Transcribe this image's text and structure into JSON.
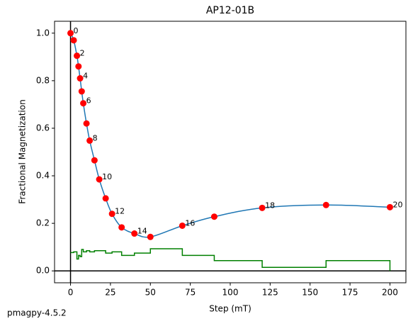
{
  "chart_data": {
    "type": "line",
    "title": "AP12-01B",
    "xlabel": "Step (mT)",
    "ylabel": "Fractional Magnetization",
    "footer": "pmagpy-4.5.2",
    "x": [
      0,
      2,
      4,
      5,
      6,
      7,
      8,
      10,
      12,
      15,
      18,
      22,
      26,
      32,
      40,
      50,
      70,
      90,
      120,
      160,
      200
    ],
    "series": [
      {
        "color": "#1f77b4",
        "marker_color": "#ff0000",
        "values": [
          1.0,
          0.97,
          0.905,
          0.86,
          0.81,
          0.755,
          0.705,
          0.62,
          0.548,
          0.465,
          0.385,
          0.305,
          0.24,
          0.183,
          0.157,
          0.143,
          0.19,
          0.228,
          0.265,
          0.277,
          0.268
        ],
        "point_labels": [
          0,
          null,
          2,
          null,
          4,
          null,
          6,
          null,
          8,
          null,
          10,
          null,
          12,
          null,
          14,
          null,
          16,
          null,
          18,
          null,
          20
        ]
      },
      {
        "color": "#008000",
        "step": true,
        "values": [
          0.077,
          0.08,
          0.05,
          0.065,
          0.06,
          0.09,
          0.08,
          0.085,
          0.08,
          0.085,
          0.085,
          0.075,
          0.08,
          0.065,
          0.075,
          0.093,
          0.065,
          0.043,
          0.015,
          0.043,
          0
        ]
      }
    ],
    "xlim": [
      -10,
      210
    ],
    "ylim": [
      -0.05,
      1.05
    ],
    "xticks": [
      0,
      25,
      50,
      75,
      100,
      125,
      150,
      175,
      200
    ],
    "yticks": [
      {
        "value": 0,
        "label": "0.0"
      },
      0.2,
      0.4,
      0.6,
      0.8,
      {
        "value": 1,
        "label": "1.0"
      }
    ]
  }
}
